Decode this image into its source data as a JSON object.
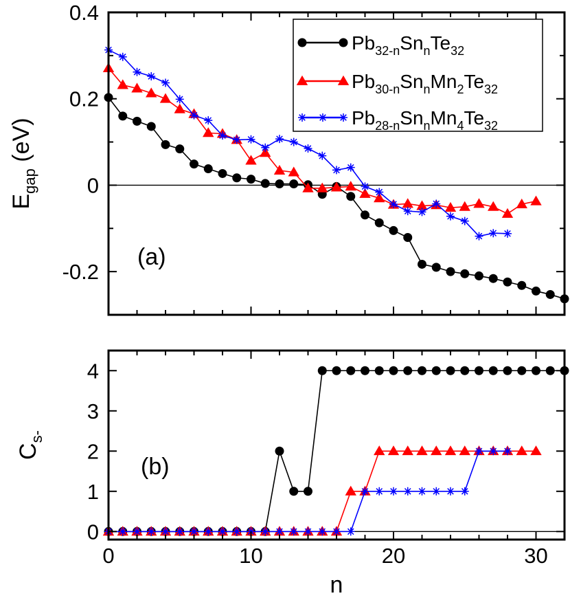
{
  "chart_data": [
    {
      "panel_label": "(a)",
      "type": "line",
      "ylabel": {
        "main": "E",
        "sub": "gap",
        "unit": " (eV)"
      },
      "xlim": [
        0,
        32
      ],
      "ylim": [
        -0.3,
        0.4
      ],
      "x_ticks": [
        {
          "v": 0,
          "label": "0"
        },
        {
          "v": 10,
          "label": "10"
        },
        {
          "v": 20,
          "label": "20"
        },
        {
          "v": 30,
          "label": "30"
        }
      ],
      "y_ticks": [
        {
          "v": -0.2,
          "label": "-0.2"
        },
        {
          "v": 0,
          "label": "0"
        },
        {
          "v": 0.2,
          "label": "0.2"
        },
        {
          "v": 0.4,
          "label": "0.4"
        }
      ],
      "reference_line": 0,
      "legend": [
        {
          "series": 0,
          "parts": [
            {
              "t": "Pb"
            },
            {
              "t": "32-n",
              "sub": true
            },
            {
              "t": "Sn"
            },
            {
              "t": "n",
              "sub": true
            },
            {
              "t": "Te"
            },
            {
              "t": "32",
              "sub": true
            }
          ]
        },
        {
          "series": 1,
          "parts": [
            {
              "t": "Pb"
            },
            {
              "t": "30-n",
              "sub": true
            },
            {
              "t": "Sn"
            },
            {
              "t": "n",
              "sub": true
            },
            {
              "t": "Mn"
            },
            {
              "t": "2",
              "sub": true
            },
            {
              "t": "Te"
            },
            {
              "t": "32",
              "sub": true
            }
          ]
        },
        {
          "series": 2,
          "parts": [
            {
              "t": "Pb"
            },
            {
              "t": "28-n",
              "sub": true
            },
            {
              "t": "Sn"
            },
            {
              "t": "n",
              "sub": true
            },
            {
              "t": "Mn"
            },
            {
              "t": "4",
              "sub": true
            },
            {
              "t": "Te"
            },
            {
              "t": "32",
              "sub": true
            }
          ]
        }
      ],
      "series": [
        {
          "name": "Pb32-nSnnTe32",
          "color": "#000000",
          "marker": "circle",
          "x": [
            0,
            1,
            2,
            3,
            4,
            5,
            6,
            7,
            8,
            9,
            10,
            11,
            12,
            13,
            14,
            15,
            16,
            17,
            18,
            19,
            20,
            21,
            22,
            23,
            24,
            25,
            26,
            27,
            28,
            29,
            30,
            31,
            32
          ],
          "values": [
            0.203,
            0.16,
            0.148,
            0.136,
            0.094,
            0.084,
            0.049,
            0.038,
            0.027,
            0.017,
            0.014,
            0.004,
            0.003,
            0.003,
            0.001,
            -0.021,
            -0.003,
            -0.026,
            -0.069,
            -0.087,
            -0.105,
            -0.121,
            -0.183,
            -0.19,
            -0.2,
            -0.205,
            -0.21,
            -0.216,
            -0.224,
            -0.232,
            -0.245,
            -0.253,
            -0.263
          ]
        },
        {
          "name": "Pb30-nSnnMn2Te32",
          "color": "#ff0000",
          "marker": "triangle",
          "x": [
            0,
            1,
            2,
            3,
            4,
            5,
            6,
            7,
            8,
            9,
            10,
            11,
            12,
            13,
            14,
            15,
            16,
            17,
            18,
            19,
            20,
            21,
            22,
            23,
            24,
            25,
            26,
            27,
            28,
            29,
            30
          ],
          "values": [
            0.271,
            0.232,
            0.224,
            0.213,
            0.2,
            0.176,
            0.165,
            0.121,
            0.119,
            0.105,
            0.057,
            0.075,
            0.034,
            0.03,
            -0.007,
            -0.007,
            -0.005,
            -0.003,
            -0.02,
            -0.03,
            -0.045,
            -0.043,
            -0.048,
            -0.046,
            -0.052,
            -0.05,
            -0.043,
            -0.05,
            -0.066,
            -0.044,
            -0.037
          ]
        },
        {
          "name": "Pb28-nSnnMn4Te32",
          "color": "#0000ff",
          "marker": "star",
          "x": [
            0,
            1,
            2,
            3,
            4,
            5,
            6,
            7,
            8,
            9,
            10,
            11,
            12,
            13,
            14,
            15,
            16,
            17,
            18,
            19,
            20,
            21,
            22,
            23,
            24,
            25,
            26,
            27,
            28
          ],
          "values": [
            0.313,
            0.297,
            0.262,
            0.252,
            0.237,
            0.199,
            0.162,
            0.15,
            0.115,
            0.105,
            0.106,
            0.087,
            0.107,
            0.1,
            0.085,
            0.068,
            0.035,
            0.041,
            -0.003,
            -0.016,
            -0.044,
            -0.06,
            -0.062,
            -0.043,
            -0.072,
            -0.083,
            -0.118,
            -0.111,
            -0.112
          ]
        }
      ]
    },
    {
      "panel_label": "(b)",
      "type": "line",
      "ylabel": {
        "main": "C",
        "sub": "s-",
        "unit": ""
      },
      "xlabel": "n",
      "xlim": [
        0,
        32
      ],
      "ylim": [
        -0.2,
        4.5
      ],
      "x_ticks": [
        {
          "v": 0,
          "label": "0"
        },
        {
          "v": 10,
          "label": "10"
        },
        {
          "v": 20,
          "label": "20"
        },
        {
          "v": 30,
          "label": "30"
        }
      ],
      "y_ticks": [
        {
          "v": 0,
          "label": "0"
        },
        {
          "v": 1,
          "label": "1"
        },
        {
          "v": 2,
          "label": "2"
        },
        {
          "v": 3,
          "label": "3"
        },
        {
          "v": 4,
          "label": "4"
        }
      ],
      "reference_line": 0,
      "series": [
        {
          "name": "Pb32-nSnnTe32",
          "color": "#000000",
          "marker": "circle",
          "x": [
            0,
            1,
            2,
            3,
            4,
            5,
            6,
            7,
            8,
            9,
            10,
            11,
            12,
            13,
            14,
            15,
            16,
            17,
            18,
            19,
            20,
            21,
            22,
            23,
            24,
            25,
            26,
            27,
            28,
            29,
            30,
            31,
            32
          ],
          "values": [
            0,
            0,
            0,
            0,
            0,
            0,
            0,
            0,
            0,
            0,
            0,
            0,
            2,
            1,
            1,
            4,
            4,
            4,
            4,
            4,
            4,
            4,
            4,
            4,
            4,
            4,
            4,
            4,
            4,
            4,
            4,
            4,
            4
          ]
        },
        {
          "name": "Pb30-nSnnMn2Te32",
          "color": "#ff0000",
          "marker": "triangle",
          "x": [
            0,
            1,
            2,
            3,
            4,
            5,
            6,
            7,
            8,
            9,
            10,
            11,
            12,
            13,
            14,
            15,
            16,
            17,
            18,
            19,
            20,
            21,
            22,
            23,
            24,
            25,
            26,
            27,
            28,
            29,
            30
          ],
          "values": [
            0,
            0,
            0,
            0,
            0,
            0,
            0,
            0,
            0,
            0,
            0,
            0,
            0,
            0,
            0,
            0,
            0,
            1,
            1,
            2,
            2,
            2,
            2,
            2,
            2,
            2,
            2,
            2,
            2,
            2,
            2
          ]
        },
        {
          "name": "Pb28-nSnnMn4Te32",
          "color": "#0000ff",
          "marker": "star",
          "x": [
            0,
            1,
            2,
            3,
            4,
            5,
            6,
            7,
            8,
            9,
            10,
            11,
            12,
            13,
            14,
            15,
            16,
            17,
            18,
            19,
            20,
            21,
            22,
            23,
            24,
            25,
            26,
            27,
            28
          ],
          "values": [
            0,
            0,
            0,
            0,
            0,
            0,
            0,
            0,
            0,
            0,
            0,
            0,
            0,
            0,
            0,
            0,
            0,
            0,
            1,
            1,
            1,
            1,
            1,
            1,
            1,
            1,
            2,
            2,
            2
          ]
        }
      ]
    }
  ]
}
